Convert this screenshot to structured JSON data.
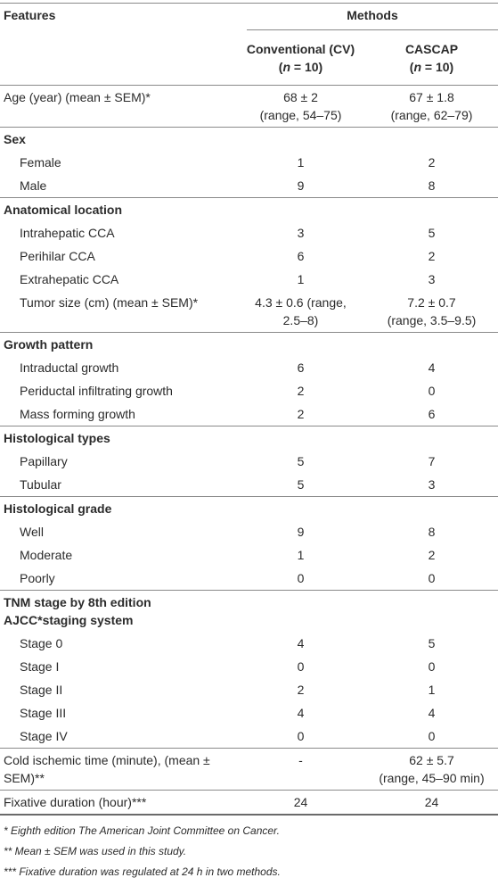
{
  "table": {
    "header": {
      "features": "Features",
      "methods": "Methods",
      "columns": [
        {
          "name": "Conventional (CV)",
          "n": {
            "open": "(",
            "var": "n",
            "rest": " = 10)"
          }
        },
        {
          "name": "CASCAP",
          "n": {
            "open": "(",
            "var": "n",
            "rest": " = 10)"
          }
        }
      ]
    },
    "rows": [
      {
        "kind": "plain",
        "sep": true,
        "cells": [
          [
            "Age (year) (mean ± SEM)*"
          ],
          [
            "68 ± 2",
            "(range, 54–75)"
          ],
          [
            "67 ± 1.8",
            "(range, 62–79)"
          ]
        ]
      },
      {
        "kind": "section",
        "sep": true,
        "cells": [
          [
            "Sex"
          ],
          [],
          []
        ]
      },
      {
        "kind": "item",
        "cells": [
          [
            "Female"
          ],
          [
            "1"
          ],
          [
            "2"
          ]
        ]
      },
      {
        "kind": "item",
        "cells": [
          [
            "Male"
          ],
          [
            "9"
          ],
          [
            "8"
          ]
        ]
      },
      {
        "kind": "section",
        "sep": true,
        "cells": [
          [
            "Anatomical location"
          ],
          [],
          []
        ]
      },
      {
        "kind": "item",
        "cells": [
          [
            "Intrahepatic CCA"
          ],
          [
            "3"
          ],
          [
            "5"
          ]
        ]
      },
      {
        "kind": "item",
        "cells": [
          [
            "Perihilar CCA"
          ],
          [
            "6"
          ],
          [
            "2"
          ]
        ]
      },
      {
        "kind": "item",
        "cells": [
          [
            "Extrahepatic CCA"
          ],
          [
            "1"
          ],
          [
            "3"
          ]
        ]
      },
      {
        "kind": "item",
        "cells": [
          [
            "Tumor size (cm) (mean ± SEM)*"
          ],
          [
            "4.3 ± 0.6 (range,",
            "2.5–8)"
          ],
          [
            "7.2 ± 0.7",
            "(range, 3.5–9.5)"
          ]
        ]
      },
      {
        "kind": "section",
        "sep": true,
        "cells": [
          [
            "Growth pattern"
          ],
          [],
          []
        ]
      },
      {
        "kind": "item",
        "cells": [
          [
            "Intraductal growth"
          ],
          [
            "6"
          ],
          [
            "4"
          ]
        ]
      },
      {
        "kind": "item",
        "cells": [
          [
            "Periductal infiltrating growth"
          ],
          [
            "2"
          ],
          [
            "0"
          ]
        ]
      },
      {
        "kind": "item",
        "cells": [
          [
            "Mass forming growth"
          ],
          [
            "2"
          ],
          [
            "6"
          ]
        ]
      },
      {
        "kind": "section",
        "sep": true,
        "cells": [
          [
            "Histological types"
          ],
          [],
          []
        ]
      },
      {
        "kind": "item",
        "cells": [
          [
            "Papillary"
          ],
          [
            "5"
          ],
          [
            "7"
          ]
        ]
      },
      {
        "kind": "item",
        "cells": [
          [
            "Tubular"
          ],
          [
            "5"
          ],
          [
            "3"
          ]
        ]
      },
      {
        "kind": "section",
        "sep": true,
        "cells": [
          [
            "Histological grade"
          ],
          [],
          []
        ]
      },
      {
        "kind": "item",
        "cells": [
          [
            "Well"
          ],
          [
            "9"
          ],
          [
            "8"
          ]
        ]
      },
      {
        "kind": "item",
        "cells": [
          [
            "Moderate"
          ],
          [
            "1"
          ],
          [
            "2"
          ]
        ]
      },
      {
        "kind": "item",
        "cells": [
          [
            "Poorly"
          ],
          [
            "0"
          ],
          [
            "0"
          ]
        ]
      },
      {
        "kind": "section",
        "sep": true,
        "cells": [
          [
            "TNM stage by 8th edition AJCC*staging system"
          ],
          [],
          []
        ]
      },
      {
        "kind": "item",
        "cells": [
          [
            "Stage 0"
          ],
          [
            "4"
          ],
          [
            "5"
          ]
        ]
      },
      {
        "kind": "item",
        "cells": [
          [
            "Stage I"
          ],
          [
            "0"
          ],
          [
            "0"
          ]
        ]
      },
      {
        "kind": "item",
        "cells": [
          [
            "Stage II"
          ],
          [
            "2"
          ],
          [
            "1"
          ]
        ]
      },
      {
        "kind": "item",
        "cells": [
          [
            "Stage III"
          ],
          [
            "4"
          ],
          [
            "4"
          ]
        ]
      },
      {
        "kind": "item",
        "cells": [
          [
            "Stage IV"
          ],
          [
            "0"
          ],
          [
            "0"
          ]
        ]
      },
      {
        "kind": "plain",
        "sep": true,
        "cells": [
          [
            "Cold ischemic time (minute), (mean ±",
            "SEM)**"
          ],
          [
            "-"
          ],
          [
            "62 ± 5.7",
            "(range, 45–90 min)"
          ]
        ]
      },
      {
        "kind": "plain",
        "sep": true,
        "cells": [
          [
            "Fixative duration (hour)***"
          ],
          [
            "24"
          ],
          [
            "24"
          ]
        ]
      }
    ],
    "footnotes": [
      "* Eighth edition The American Joint Committee on Cancer.",
      "** Mean ± SEM was used in this study.",
      "*** Fixative duration was regulated at 24 h in two methods."
    ]
  }
}
